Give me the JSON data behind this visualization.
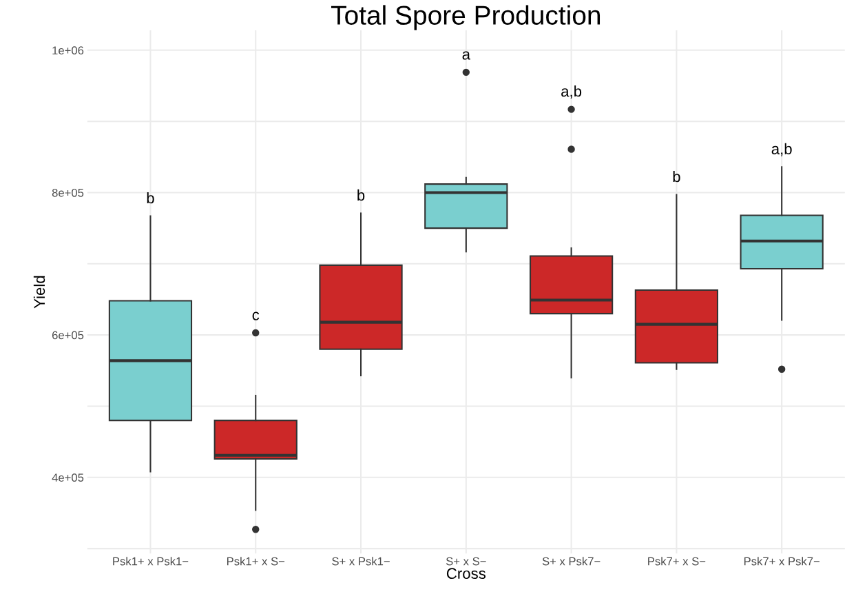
{
  "chart_data": {
    "type": "box",
    "title": "Total Spore Production",
    "xlabel": "Cross",
    "ylabel": "Yield",
    "categories": [
      "Psk1+ x Psk1−",
      "Psk1+ x S−",
      "S+ x Psk1−",
      "S+ x S−",
      "S+ x Psk7−",
      "Psk7+ x S−",
      "Psk7+ x Psk7−"
    ],
    "colors": [
      "#7acfcf",
      "#cc2828",
      "#cc2828",
      "#7acfcf",
      "#cc2828",
      "#cc2828",
      "#7acfcf"
    ],
    "boxes": [
      {
        "low": 408000,
        "q1": 480000,
        "median": 564000,
        "q3": 648000,
        "high": 767000
      },
      {
        "low": 354000,
        "q1": 426000,
        "median": 431000,
        "q3": 480000,
        "high": 515000,
        "outliers": [
          603000,
          327000
        ]
      },
      {
        "low": 543000,
        "q1": 580000,
        "median": 618000,
        "q3": 698000,
        "high": 771000
      },
      {
        "low": 717000,
        "q1": 750000,
        "median": 800000,
        "q3": 812000,
        "high": 821000,
        "outliers": [
          969000
        ]
      },
      {
        "low": 540000,
        "q1": 630000,
        "median": 649000,
        "q3": 711000,
        "high": 722000,
        "outliers": [
          917000,
          861000
        ]
      },
      {
        "low": 552000,
        "q1": 561000,
        "median": 615000,
        "q3": 663000,
        "high": 797000
      },
      {
        "low": 621000,
        "q1": 693000,
        "median": 732000,
        "q3": 768000,
        "high": 836000,
        "outliers": [
          552000
        ]
      }
    ],
    "annotations": [
      "b",
      "c",
      "b",
      "a",
      "a,b",
      "b",
      "a,b"
    ],
    "ylim": [
      293000,
      1028000
    ],
    "yticks": [
      {
        "value": 300000,
        "label": null
      },
      {
        "value": 400000,
        "label": "4e+05"
      },
      {
        "value": 500000,
        "label": null
      },
      {
        "value": 600000,
        "label": "6e+05"
      },
      {
        "value": 700000,
        "label": null
      },
      {
        "value": 800000,
        "label": "8e+05"
      },
      {
        "value": 900000,
        "label": null
      },
      {
        "value": 1000000,
        "label": "1e+06"
      }
    ],
    "grid": true,
    "legend": false
  }
}
